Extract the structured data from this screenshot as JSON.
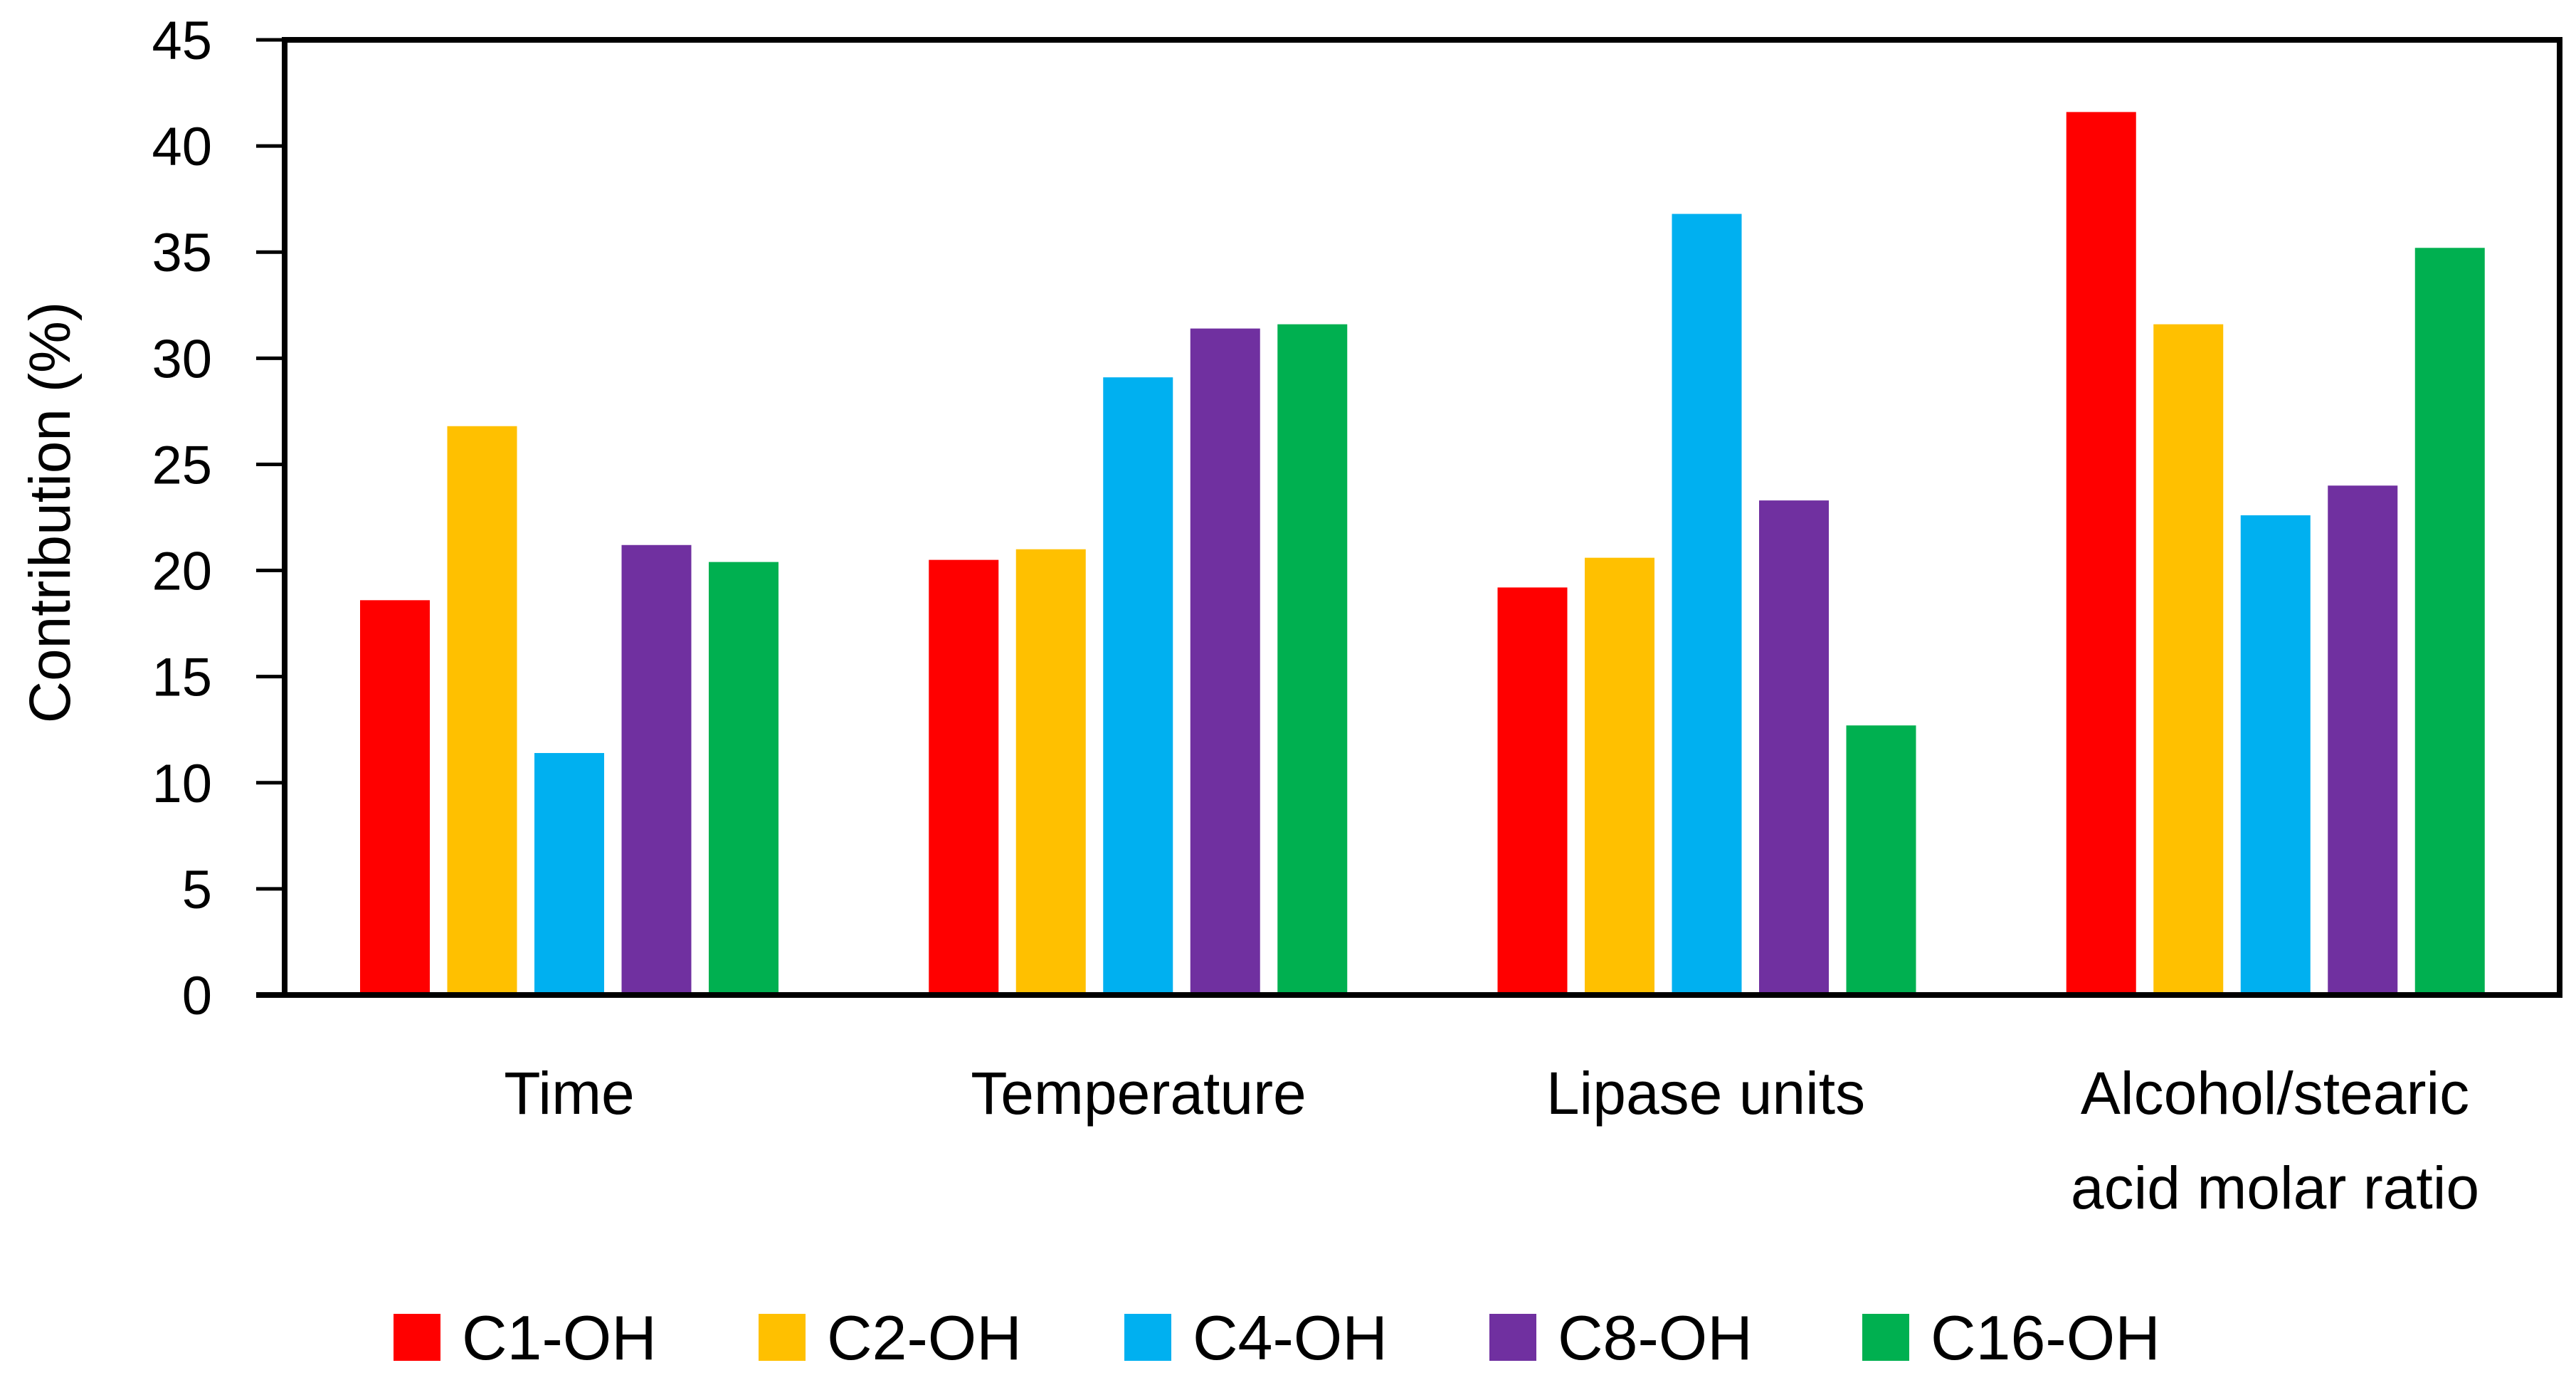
{
  "chart_data": {
    "type": "bar",
    "title": "",
    "xlabel": "",
    "ylabel": "Contribution (%)",
    "ylim": [
      0,
      45
    ],
    "yticks": [
      0,
      5,
      10,
      15,
      20,
      25,
      30,
      35,
      40,
      45
    ],
    "categories": [
      [
        "Time"
      ],
      [
        "Temperature"
      ],
      [
        "Lipase units"
      ],
      [
        "Alcohol/stearic",
        "acid molar ratio"
      ]
    ],
    "series": [
      {
        "name": "C1-OH",
        "color": "#FF0000",
        "values": [
          18.6,
          20.5,
          19.2,
          41.6
        ]
      },
      {
        "name": "C2-OH",
        "color": "#FFC000",
        "values": [
          26.8,
          21.0,
          20.6,
          31.6
        ]
      },
      {
        "name": "C4-OH",
        "color": "#00B0F0",
        "values": [
          11.4,
          29.1,
          36.8,
          22.6
        ]
      },
      {
        "name": "C8-OH",
        "color": "#7030A0",
        "values": [
          21.2,
          31.4,
          23.3,
          24.0
        ]
      },
      {
        "name": "C16-OH",
        "color": "#00B050",
        "values": [
          20.4,
          31.6,
          12.7,
          35.2
        ]
      }
    ],
    "grid": false,
    "legend_position": "bottom"
  }
}
